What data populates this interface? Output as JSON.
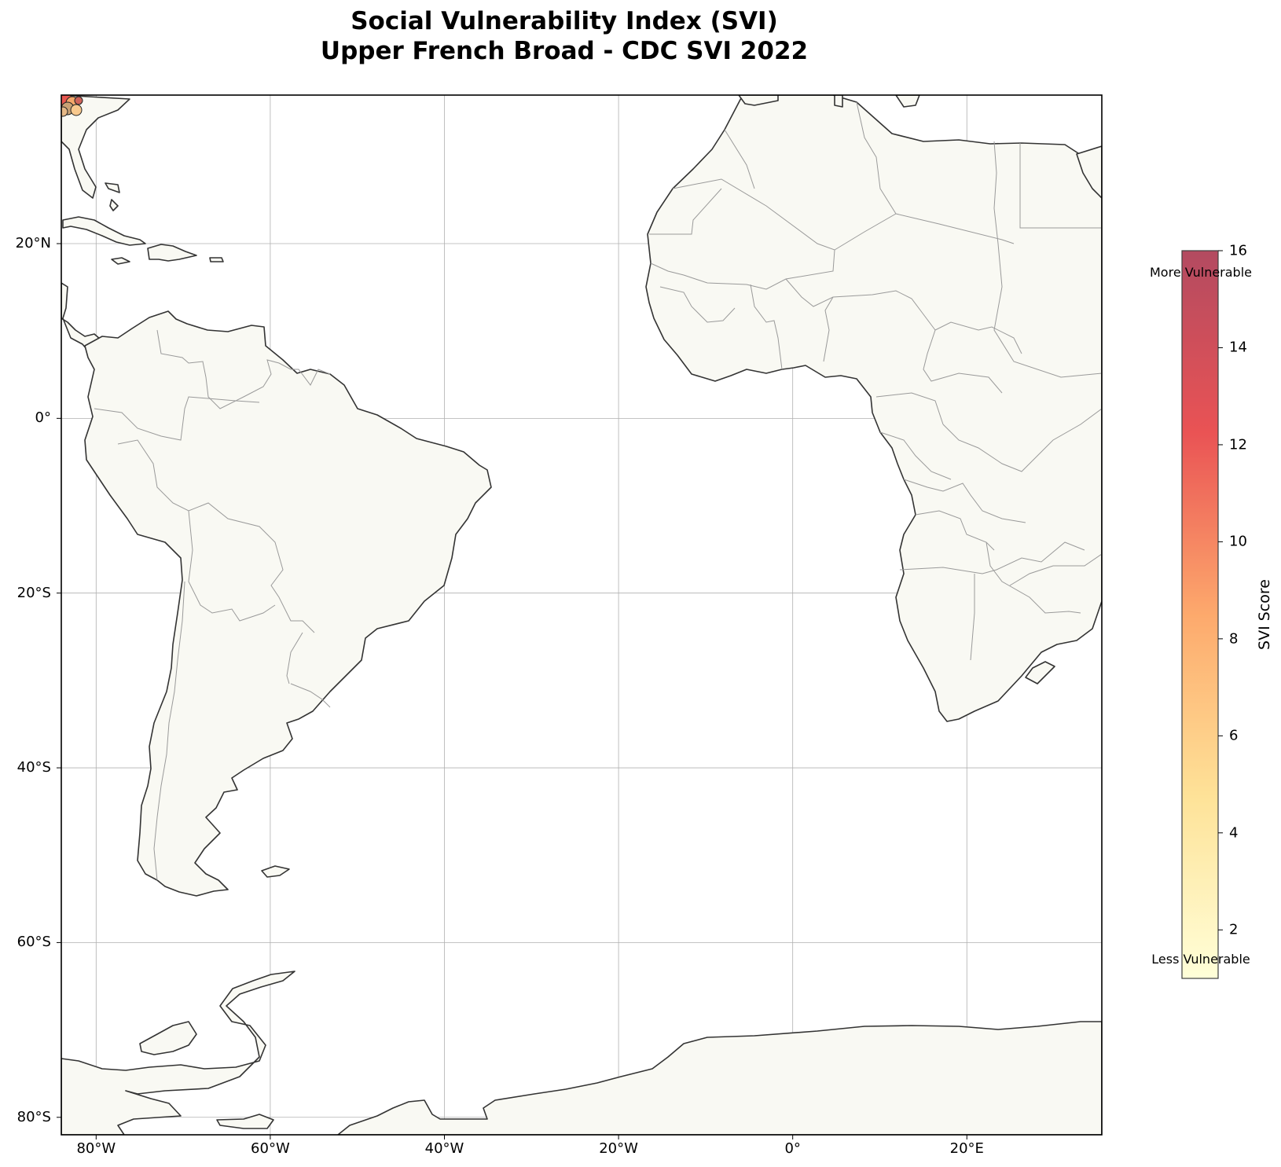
{
  "title": {
    "line1": "Social Vulnerability Index (SVI)",
    "line2": "Upper French Broad - CDC SVI 2022"
  },
  "map": {
    "extent": {
      "lon": [
        -84,
        35.5
      ],
      "lat": [
        -82,
        37
      ]
    },
    "x_ticks": [
      {
        "lon": -80,
        "label": "80°W"
      },
      {
        "lon": -60,
        "label": "60°W"
      },
      {
        "lon": -40,
        "label": "40°W"
      },
      {
        "lon": -20,
        "label": "20°W"
      },
      {
        "lon": 0,
        "label": "0°"
      },
      {
        "lon": 20,
        "label": "20°E"
      }
    ],
    "y_ticks": [
      {
        "lat": 20,
        "label": "20°N"
      },
      {
        "lat": 0,
        "label": "0°"
      },
      {
        "lat": -20,
        "label": "20°S"
      },
      {
        "lat": -40,
        "label": "40°S"
      },
      {
        "lat": -60,
        "label": "60°S"
      },
      {
        "lat": -80,
        "label": "80°S"
      }
    ],
    "gridlines": true,
    "land_color": "#f9f9f3",
    "coast_color": "#333333",
    "border_color": "#9a9a9a"
  },
  "colorbar": {
    "label": "SVI Score",
    "min": 1,
    "max": 16,
    "ticks": [
      2,
      4,
      6,
      8,
      10,
      12,
      14,
      16
    ],
    "high_note": "More Vulnerable",
    "low_note": "Less Vulnerable",
    "colormap": [
      "#ffffcc",
      "#ffeda0",
      "#fed976",
      "#feb24c",
      "#fd8d3c",
      "#fc4e2a",
      "#e31a1c",
      "#b10026"
    ]
  }
}
